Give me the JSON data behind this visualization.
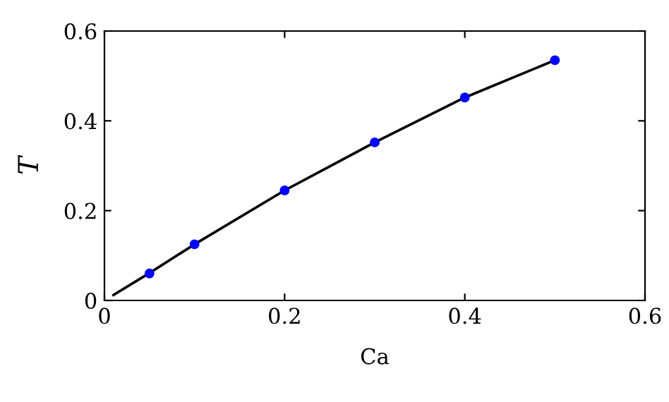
{
  "chart_data": {
    "type": "scatter",
    "xlabel": "Ca",
    "ylabel": "T",
    "series": [
      {
        "type": "line",
        "color": "#000000",
        "x": [
          0.01,
          0.05,
          0.1,
          0.2,
          0.3,
          0.4,
          0.5
        ],
        "values": [
          0.012,
          0.061,
          0.125,
          0.245,
          0.352,
          0.452,
          0.535
        ],
        "marker": "none"
      },
      {
        "color": "#0000ff",
        "x": [
          0.05,
          0.1,
          0.2,
          0.3,
          0.4,
          0.5
        ],
        "values": [
          0.06,
          0.125,
          0.245,
          0.352,
          0.452,
          0.535
        ],
        "marker": "circle"
      }
    ],
    "xlim": [
      0,
      0.6
    ],
    "ylim": [
      0,
      0.6
    ],
    "xticks": [
      0,
      0.2,
      0.4,
      0.6
    ],
    "yticks": [
      0,
      0.2,
      0.4,
      0.6
    ],
    "grid": false,
    "legend": false
  }
}
